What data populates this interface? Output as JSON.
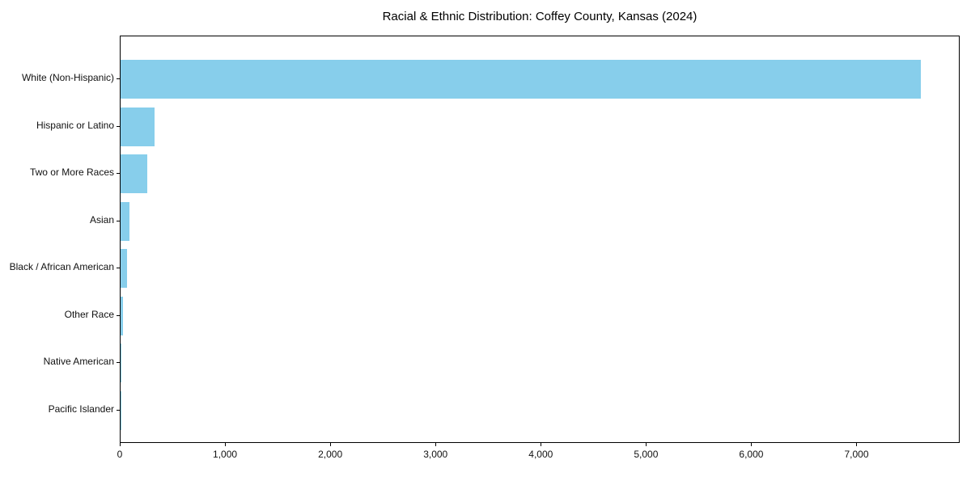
{
  "chart_data": {
    "type": "bar",
    "orientation": "horizontal",
    "title": "Racial & Ethnic Distribution: Coffey County, Kansas (2024)",
    "categories": [
      "White (Non-Hispanic)",
      "Hispanic or Latino",
      "Two or More Races",
      "Asian",
      "Black / African American",
      "Other Race",
      "Native American",
      "Pacific Islander"
    ],
    "values": [
      7600,
      325,
      250,
      85,
      65,
      20,
      10,
      2
    ],
    "xlabel": "",
    "ylabel": "",
    "xlim": [
      0,
      7980
    ],
    "x_tick_values": [
      0,
      1000,
      2000,
      3000,
      4000,
      5000,
      6000,
      7000
    ],
    "x_tick_labels": [
      "0",
      "1,000",
      "2,000",
      "3,000",
      "4,000",
      "5,000",
      "6,000",
      "7,000"
    ],
    "bar_color": "#87CEEB",
    "axis_color": "#000000",
    "grid": false,
    "legend_position": "none"
  }
}
